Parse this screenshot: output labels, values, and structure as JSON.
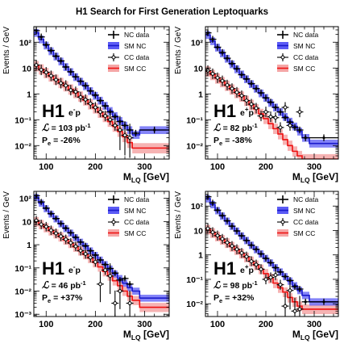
{
  "figure": {
    "title": "H1 Search for First Generation Leptoquarks"
  },
  "colors": {
    "nc_band": "#5b5bf5",
    "nc_line": "#1a1acc",
    "cc_band": "#f5a6a6",
    "cc_line": "#ee1111",
    "data": "#000000"
  },
  "legend": {
    "nc_data": "NC data",
    "sm_nc": "SM NC",
    "cc_data": "CC data",
    "sm_cc": "SM CC"
  },
  "chart_data": [
    {
      "type": "line",
      "panel": "top-left",
      "experiment": "H1",
      "beam_base": "e",
      "beam_sign": "-",
      "beam_tail": "p",
      "lumi_symbol": "ℒ",
      "lumi_eq": " = ",
      "lumi_value": "103",
      "lumi_unit": "pb",
      "lumi_exp": "-1",
      "pol_base": "P",
      "pol_sub": "e",
      "pol_text": " = -26%",
      "ylabel": "Events / GeV",
      "xlabel": "M",
      "xlabel_sub": "LQ",
      "xlabel_unit": " [GeV]",
      "xlim": [
        75,
        350
      ],
      "ylim": [
        0.003,
        400
      ],
      "yscale": "log",
      "xticks": [
        100,
        200,
        300
      ],
      "yticks": [
        0.01,
        0.1,
        1,
        10,
        100
      ],
      "ytick_labels": [
        "10⁻²",
        "10⁻¹",
        "1",
        "10",
        "10²"
      ],
      "edges": [
        75,
        85,
        95,
        105,
        115,
        125,
        135,
        145,
        155,
        165,
        175,
        185,
        195,
        205,
        215,
        225,
        235,
        245,
        255,
        265,
        275,
        290,
        350
      ],
      "sm_nc": [
        230,
        130,
        75,
        45,
        28,
        18,
        11,
        7,
        4.5,
        3.0,
        2.0,
        1.3,
        0.85,
        0.55,
        0.35,
        0.22,
        0.14,
        0.09,
        0.06,
        0.04,
        0.026,
        0.04
      ],
      "sm_cc": [
        12,
        9,
        6.5,
        4.8,
        3.6,
        2.7,
        2.0,
        1.5,
        1.1,
        0.8,
        0.57,
        0.4,
        0.28,
        0.19,
        0.13,
        0.085,
        0.055,
        0.035,
        0.022,
        0.013,
        0.008,
        0.008
      ],
      "nc_points": [
        [
          80,
          280
        ],
        [
          90,
          160
        ],
        [
          100,
          80
        ],
        [
          110,
          48
        ],
        [
          120,
          29
        ],
        [
          130,
          19
        ],
        [
          140,
          11
        ],
        [
          150,
          7.2
        ],
        [
          160,
          4.6
        ],
        [
          170,
          3.1
        ],
        [
          180,
          2.1
        ],
        [
          190,
          1.3
        ],
        [
          200,
          0.9
        ],
        [
          210,
          0.55
        ],
        [
          220,
          0.34
        ],
        [
          230,
          0.2
        ],
        [
          240,
          0.13
        ],
        [
          250,
          0.085
        ],
        [
          260,
          0.06
        ],
        [
          270,
          0.04
        ],
        [
          282,
          0.03
        ],
        [
          320,
          0.04
        ]
      ],
      "cc_points": [
        [
          80,
          13
        ],
        [
          90,
          8.5
        ],
        [
          100,
          6.8
        ],
        [
          110,
          5.0
        ],
        [
          120,
          3.5
        ],
        [
          130,
          2.6
        ],
        [
          140,
          2.1
        ],
        [
          150,
          1.4
        ],
        [
          160,
          1.2
        ],
        [
          170,
          0.75
        ],
        [
          180,
          0.6
        ],
        [
          190,
          0.42
        ],
        [
          200,
          0.3
        ],
        [
          210,
          0.2
        ],
        [
          220,
          0.14
        ],
        [
          230,
          0.1
        ],
        [
          240,
          0.06
        ],
        [
          250,
          0.04
        ],
        [
          260,
          0.025
        ],
        [
          270,
          0.02
        ]
      ]
    },
    {
      "type": "line",
      "panel": "top-right",
      "experiment": "H1",
      "beam_base": "e",
      "beam_sign": "+",
      "beam_tail": "p",
      "lumi_symbol": "ℒ",
      "lumi_eq": " = ",
      "lumi_value": "82",
      "lumi_unit": "pb",
      "lumi_exp": "-1",
      "pol_base": "P",
      "pol_sub": "e",
      "pol_text": " = -38%",
      "ylabel": "Events / GeV",
      "xlabel": "M",
      "xlabel_sub": "LQ",
      "xlabel_unit": " [GeV]",
      "xlim": [
        75,
        350
      ],
      "ylim": [
        0.003,
        400
      ],
      "yscale": "log",
      "xticks": [
        100,
        200,
        300
      ],
      "yticks": [
        0.01,
        0.1,
        1,
        10,
        100
      ],
      "ytick_labels": [
        "10⁻²",
        "10⁻¹",
        "1",
        "10",
        "10²"
      ],
      "edges": [
        75,
        85,
        95,
        105,
        115,
        125,
        135,
        145,
        155,
        165,
        175,
        185,
        195,
        205,
        215,
        225,
        235,
        245,
        255,
        265,
        275,
        290,
        350
      ],
      "sm_nc": [
        190,
        110,
        62,
        37,
        23,
        14,
        9,
        5.7,
        3.7,
        2.4,
        1.6,
        1.05,
        0.7,
        0.45,
        0.3,
        0.2,
        0.13,
        0.085,
        0.055,
        0.035,
        0.02,
        0.012
      ],
      "sm_cc": [
        7.5,
        5.5,
        4.0,
        2.9,
        2.1,
        1.5,
        1.1,
        0.8,
        0.55,
        0.38,
        0.26,
        0.17,
        0.11,
        0.07,
        0.045,
        0.028,
        0.017,
        0.01,
        0.006,
        0.004,
        0.003,
        0.003
      ],
      "nc_points": [
        [
          80,
          230
        ],
        [
          90,
          130
        ],
        [
          100,
          64
        ],
        [
          110,
          40
        ],
        [
          120,
          24
        ],
        [
          130,
          15
        ],
        [
          140,
          9.5
        ],
        [
          150,
          5.5
        ],
        [
          160,
          3.8
        ],
        [
          170,
          2.5
        ],
        [
          180,
          1.6
        ],
        [
          190,
          1.1
        ],
        [
          200,
          0.7
        ],
        [
          210,
          0.48
        ],
        [
          220,
          0.3
        ],
        [
          230,
          0.2
        ],
        [
          240,
          0.12
        ],
        [
          250,
          0.08
        ],
        [
          260,
          0.05
        ],
        [
          270,
          0.04
        ],
        [
          282,
          0.02
        ],
        [
          320,
          0.02
        ]
      ],
      "cc_points": [
        [
          80,
          8
        ],
        [
          90,
          6
        ],
        [
          100,
          4.2
        ],
        [
          110,
          3.2
        ],
        [
          120,
          2.2
        ],
        [
          130,
          1.6
        ],
        [
          140,
          1.15
        ],
        [
          150,
          0.85
        ],
        [
          160,
          0.55
        ],
        [
          170,
          0.4
        ],
        [
          180,
          0.28
        ],
        [
          190,
          0.14
        ],
        [
          200,
          0.2
        ],
        [
          210,
          0.13
        ],
        [
          220,
          0.12
        ],
        [
          230,
          0.05
        ],
        [
          240,
          0.3
        ],
        [
          250,
          0.06
        ],
        [
          270,
          0.2
        ]
      ]
    },
    {
      "type": "line",
      "panel": "bottom-left",
      "experiment": "H1",
      "beam_base": "e",
      "beam_sign": "-",
      "beam_tail": "p",
      "lumi_symbol": "ℒ",
      "lumi_eq": " = ",
      "lumi_value": "46",
      "lumi_unit": "pb",
      "lumi_exp": "-1",
      "pol_base": "P",
      "pol_sub": "e",
      "pol_text": " = +37%",
      "ylabel": "Events / GeV",
      "xlabel": "M",
      "xlabel_sub": "LQ",
      "xlabel_unit": " [GeV]",
      "xlim": [
        75,
        350
      ],
      "ylim": [
        0.0008,
        200
      ],
      "yscale": "log",
      "xticks": [
        100,
        200,
        300
      ],
      "yticks": [
        0.001,
        0.01,
        0.1,
        1,
        10,
        100
      ],
      "ytick_labels": [
        "10⁻³",
        "10⁻²",
        "10⁻¹",
        "1",
        "10",
        "10²"
      ],
      "edges": [
        75,
        85,
        95,
        105,
        115,
        125,
        135,
        145,
        155,
        165,
        175,
        185,
        195,
        205,
        215,
        225,
        235,
        245,
        255,
        265,
        275,
        290,
        350
      ],
      "sm_nc": [
        110,
        62,
        36,
        21,
        13,
        8,
        5.0,
        3.2,
        2.0,
        1.3,
        0.85,
        0.55,
        0.35,
        0.22,
        0.14,
        0.09,
        0.055,
        0.035,
        0.022,
        0.014,
        0.01,
        0.005
      ],
      "sm_cc": [
        10,
        7.5,
        5.5,
        4.0,
        3.0,
        2.2,
        1.6,
        1.15,
        0.8,
        0.55,
        0.38,
        0.26,
        0.17,
        0.11,
        0.07,
        0.045,
        0.028,
        0.017,
        0.01,
        0.006,
        0.004,
        0.002
      ],
      "nc_points": [
        [
          80,
          130
        ],
        [
          90,
          70
        ],
        [
          100,
          38
        ],
        [
          110,
          22
        ],
        [
          120,
          13.5
        ],
        [
          130,
          8.2
        ],
        [
          140,
          5.2
        ],
        [
          150,
          3.3
        ],
        [
          160,
          2.1
        ],
        [
          170,
          1.3
        ],
        [
          180,
          0.9
        ],
        [
          190,
          0.55
        ],
        [
          200,
          0.36
        ],
        [
          210,
          0.22
        ],
        [
          220,
          0.14
        ],
        [
          230,
          0.095
        ],
        [
          240,
          0.06
        ],
        [
          250,
          0.03
        ],
        [
          260,
          0.035
        ],
        [
          270,
          0.02
        ]
      ],
      "cc_points": [
        [
          80,
          11
        ],
        [
          90,
          7.5
        ],
        [
          100,
          6.0
        ],
        [
          110,
          4.2
        ],
        [
          120,
          3.1
        ],
        [
          130,
          2.3
        ],
        [
          140,
          1.7
        ],
        [
          150,
          1.2
        ],
        [
          160,
          0.85
        ],
        [
          170,
          0.55
        ],
        [
          180,
          0.4
        ],
        [
          190,
          0.28
        ],
        [
          200,
          0.18
        ],
        [
          210,
          0.02
        ],
        [
          220,
          0.08
        ],
        [
          230,
          0.045
        ],
        [
          240,
          0.003
        ],
        [
          250,
          0.01
        ],
        [
          270,
          0.003
        ]
      ]
    },
    {
      "type": "line",
      "panel": "bottom-right",
      "experiment": "H1",
      "beam_base": "e",
      "beam_sign": "+",
      "beam_tail": "p",
      "lumi_symbol": "ℒ",
      "lumi_eq": " = ",
      "lumi_value": "98",
      "lumi_unit": "pb",
      "lumi_exp": "-1",
      "pol_base": "P",
      "pol_sub": "e",
      "pol_text": " = +32%",
      "ylabel": "Events / GeV",
      "xlabel": "M",
      "xlabel_sub": "LQ",
      "xlabel_unit": " [GeV]",
      "xlim": [
        75,
        350
      ],
      "ylim": [
        0.003,
        400
      ],
      "yscale": "log",
      "xticks": [
        100,
        200,
        300
      ],
      "yticks": [
        0.01,
        0.1,
        1,
        10,
        100
      ],
      "ytick_labels": [
        "10⁻²",
        "10⁻¹",
        "1",
        "10",
        "10²"
      ],
      "edges": [
        75,
        85,
        95,
        105,
        115,
        125,
        135,
        145,
        155,
        165,
        175,
        185,
        195,
        205,
        215,
        225,
        235,
        245,
        255,
        265,
        275,
        290,
        350
      ],
      "sm_nc": [
        200,
        115,
        65,
        39,
        24,
        15,
        9.5,
        6.0,
        3.9,
        2.5,
        1.65,
        1.1,
        0.72,
        0.47,
        0.3,
        0.2,
        0.13,
        0.085,
        0.055,
        0.035,
        0.022,
        0.012
      ],
      "sm_cc": [
        11,
        8.0,
        5.8,
        4.2,
        3.1,
        2.2,
        1.6,
        1.15,
        0.8,
        0.55,
        0.38,
        0.26,
        0.17,
        0.11,
        0.07,
        0.045,
        0.03,
        0.018,
        0.012,
        0.008,
        0.006,
        0.006
      ],
      "nc_points": [
        [
          80,
          240
        ],
        [
          90,
          135
        ],
        [
          100,
          68
        ],
        [
          110,
          41
        ],
        [
          120,
          25
        ],
        [
          130,
          15
        ],
        [
          140,
          9.6
        ],
        [
          150,
          6.1
        ],
        [
          160,
          3.9
        ],
        [
          170,
          2.5
        ],
        [
          180,
          1.7
        ],
        [
          190,
          1.1
        ],
        [
          200,
          0.72
        ],
        [
          210,
          0.48
        ],
        [
          220,
          0.3
        ],
        [
          230,
          0.2
        ],
        [
          240,
          0.13
        ],
        [
          250,
          0.09
        ],
        [
          260,
          0.05
        ],
        [
          270,
          0.04
        ],
        [
          282,
          0.012
        ],
        [
          320,
          0.012
        ]
      ],
      "cc_points": [
        [
          80,
          12
        ],
        [
          90,
          8.5
        ],
        [
          100,
          6.2
        ],
        [
          110,
          4.5
        ],
        [
          120,
          3.2
        ],
        [
          130,
          2.3
        ],
        [
          140,
          1.7
        ],
        [
          150,
          1.2
        ],
        [
          160,
          0.85
        ],
        [
          170,
          0.55
        ],
        [
          180,
          0.4
        ],
        [
          190,
          0.26
        ],
        [
          200,
          0.1
        ],
        [
          210,
          0.12
        ],
        [
          220,
          0.15
        ],
        [
          230,
          0.06
        ],
        [
          240,
          0.008
        ],
        [
          250,
          0.035
        ],
        [
          260,
          0.005
        ],
        [
          270,
          0.006
        ]
      ]
    }
  ]
}
